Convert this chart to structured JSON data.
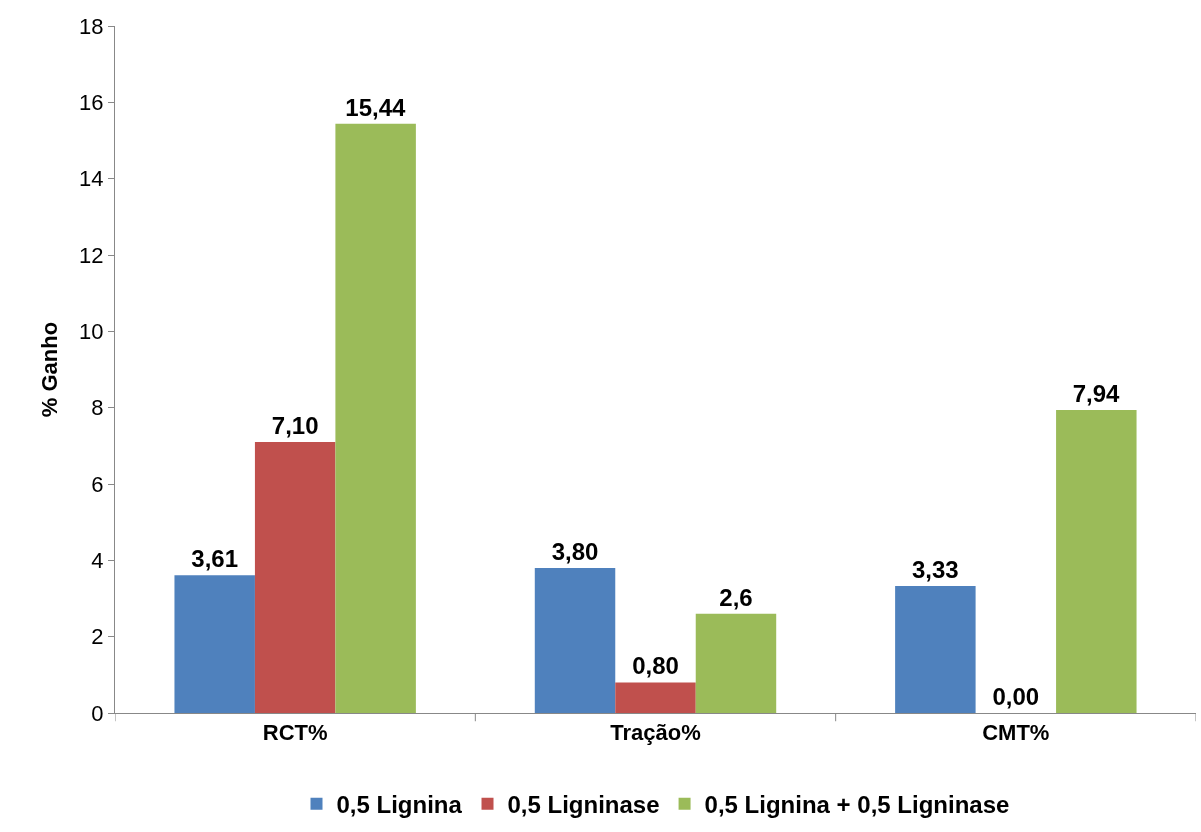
{
  "chart_data": {
    "type": "bar",
    "ylabel": "% Ganho",
    "categories": [
      "RCT%",
      "Tração%",
      "CMT%"
    ],
    "series": [
      {
        "name": "0,5 Lignina",
        "color": "#4f81bd",
        "values": [
          3.61,
          3.8,
          3.33
        ],
        "value_labels": [
          "3,61",
          "3,80",
          "3,33"
        ]
      },
      {
        "name": "0,5 Ligninase",
        "color": "#c0504d",
        "values": [
          7.1,
          0.8,
          0.0
        ],
        "value_labels": [
          "7,10",
          "0,80",
          "0,00"
        ]
      },
      {
        "name": "0,5 Lignina + 0,5 Ligninase",
        "color": "#9bbb59",
        "values": [
          15.44,
          2.6,
          7.94
        ],
        "value_labels": [
          "15,44",
          "2,6",
          "7,94"
        ]
      }
    ],
    "ylim": [
      0,
      18
    ],
    "yticks": [
      0,
      2,
      4,
      6,
      8,
      10,
      12,
      14,
      16,
      18
    ],
    "legend": "bottom"
  }
}
